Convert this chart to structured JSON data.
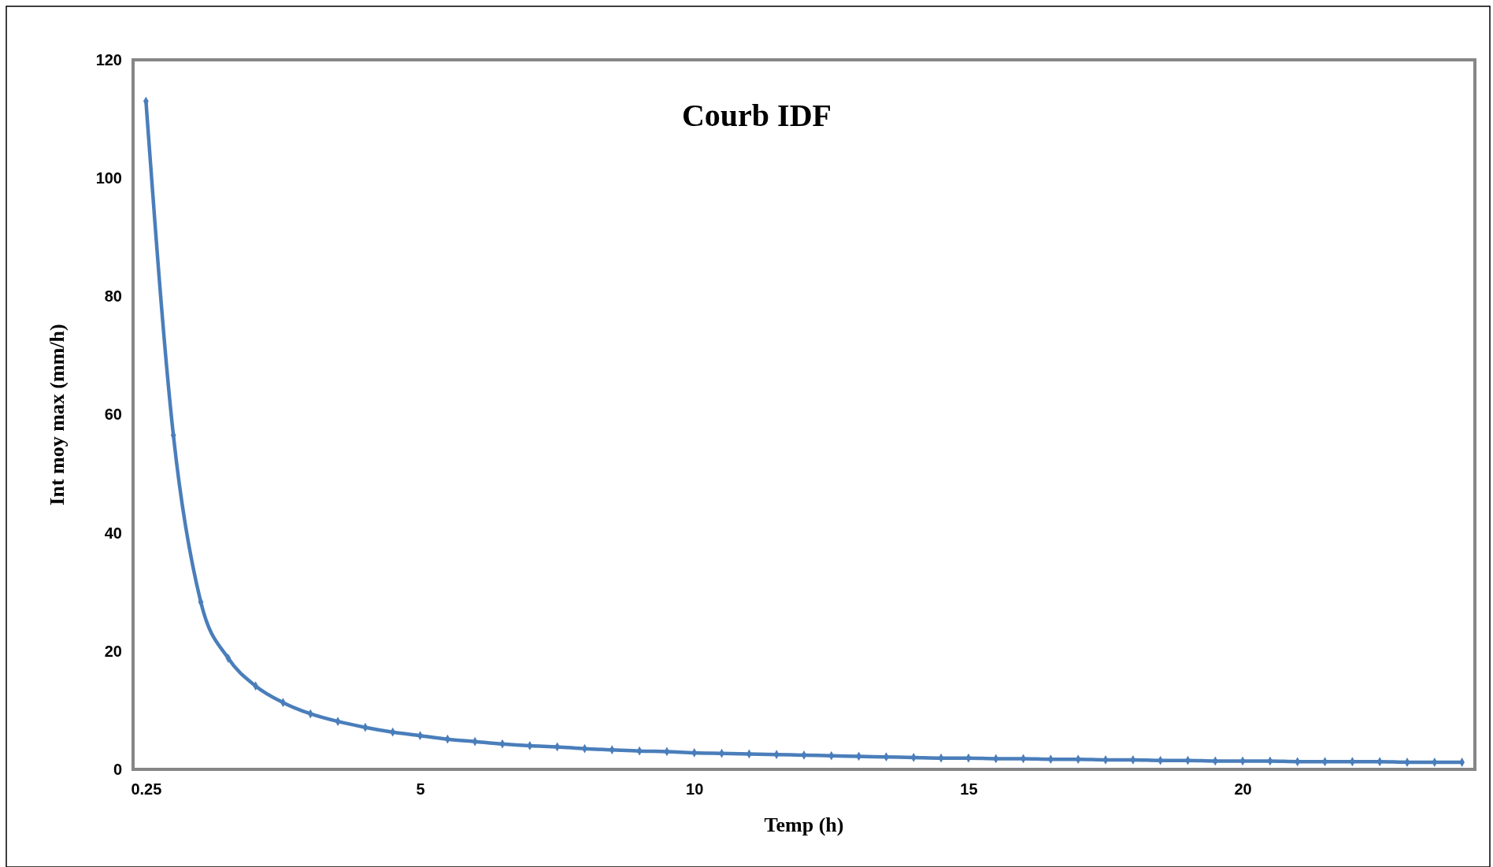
{
  "chart_data": {
    "type": "line",
    "title": "Courb IDF",
    "xlabel": "Temp (h)",
    "ylabel": "Int moy max (mm/h)",
    "categories": [
      "0.25",
      null,
      null,
      null,
      null,
      null,
      null,
      null,
      null,
      null,
      "5",
      null,
      null,
      null,
      null,
      null,
      null,
      null,
      null,
      null,
      "10",
      null,
      null,
      null,
      null,
      null,
      null,
      null,
      null,
      null,
      "15",
      null,
      null,
      null,
      null,
      null,
      null,
      null,
      null,
      null,
      "20",
      null,
      null,
      null,
      null,
      null,
      null,
      null,
      null
    ],
    "series": [
      {
        "color": "#4a7ebb",
        "values": [
          113,
          56.5,
          28.3,
          18.8,
          14.1,
          11.3,
          9.4,
          8.1,
          7.1,
          6.3,
          5.7,
          5.1,
          4.7,
          4.3,
          4.0,
          3.8,
          3.5,
          3.3,
          3.1,
          3.0,
          2.8,
          2.7,
          2.6,
          2.5,
          2.4,
          2.3,
          2.2,
          2.1,
          2.0,
          1.9,
          1.9,
          1.8,
          1.8,
          1.7,
          1.7,
          1.6,
          1.6,
          1.5,
          1.5,
          1.4,
          1.4,
          1.4,
          1.3,
          1.3,
          1.3,
          1.3,
          1.2,
          1.2,
          1.2
        ]
      }
    ],
    "ylim": [
      0,
      120
    ],
    "yticks": [
      0,
      20,
      40,
      60,
      80,
      100,
      120
    ],
    "marker": "diamond",
    "line_style": "solid"
  }
}
